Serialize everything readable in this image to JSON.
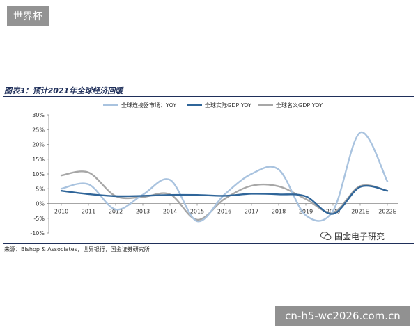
{
  "corner_tag": "世界杯",
  "figure_title": "图表3：预计2021年全球经济回暖",
  "source": "来源：Bishop & Associates，世界银行，国金证券研究所",
  "watermark": "国金电子研究",
  "footer_tag": "cn-h5-wc2026.com.cn",
  "chart_data": {
    "type": "line",
    "categories": [
      "2010",
      "2011",
      "2012",
      "2013",
      "2014",
      "2015",
      "2016",
      "2017",
      "2018",
      "2019",
      "2020",
      "2021E",
      "2022E"
    ],
    "ylim": [
      -10,
      30
    ],
    "yticks": [
      -10,
      -5,
      0,
      5,
      10,
      15,
      20,
      25,
      30
    ],
    "ytick_labels": [
      "-10%",
      "-5%",
      "0%",
      "5%",
      "10%",
      "15%",
      "20%",
      "25%",
      "30%"
    ],
    "legend_position": "top",
    "series": [
      {
        "name": "全球连接器市场：YOY",
        "color": "#a9c3df",
        "values": [
          5,
          6.5,
          -2,
          3,
          8,
          -6,
          3,
          10,
          11.5,
          -4,
          -2.5,
          24,
          7.5
        ]
      },
      {
        "name": "全球实际GDP:YOY",
        "color": "#2f6599",
        "values": [
          4.3,
          3.2,
          2.5,
          2.6,
          2.9,
          2.9,
          2.6,
          3.3,
          3.1,
          2.4,
          -3.5,
          5.6,
          4.3
        ]
      },
      {
        "name": "全球名义GDP:YOY",
        "color": "#a7a7a7",
        "values": [
          9.5,
          10.5,
          2.5,
          2.2,
          3.1,
          -5.5,
          1.5,
          6,
          5.8,
          1.5,
          -3,
          5.9,
          4.3
        ]
      }
    ]
  }
}
